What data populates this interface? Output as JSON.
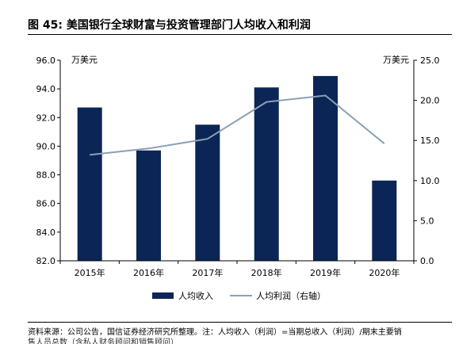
{
  "figure": {
    "title": "图 45: 美国银行全球财富与投资管理部门人均收入和利润"
  },
  "chart_data": {
    "type": "bar",
    "categories": [
      "2015年",
      "2016年",
      "2017年",
      "2018年",
      "2019年",
      "2020年"
    ],
    "series": [
      {
        "name": "人均收入",
        "type": "bar",
        "axis": "left",
        "values": [
          92.7,
          89.7,
          91.5,
          94.1,
          94.9,
          87.6
        ],
        "color": "#0b2556"
      },
      {
        "name": "人均利润（右轴）",
        "type": "line",
        "axis": "right",
        "values": [
          13.2,
          14.0,
          15.2,
          19.8,
          20.6,
          14.6
        ],
        "color": "#8aa0b6"
      }
    ],
    "left_axis": {
      "unit": "万美元",
      "min": 82.0,
      "max": 96.0,
      "ticks": [
        "82.0",
        "84.0",
        "86.0",
        "88.0",
        "90.0",
        "92.0",
        "94.0",
        "96.0"
      ]
    },
    "right_axis": {
      "unit": "万美元",
      "min": 0.0,
      "max": 25.0,
      "ticks": [
        "0.0",
        "5.0",
        "10.0",
        "15.0",
        "20.0",
        "25.0"
      ]
    },
    "grid": false,
    "legend_position": "bottom"
  },
  "footer": {
    "source": "资料来源：公司公告，国信证券经济研究所整理。注：人均收入（利润）=当期总收入（利润）/期末主要销",
    "source_cont": "售人员总数（含私人财务顾问和销售顾问）"
  }
}
